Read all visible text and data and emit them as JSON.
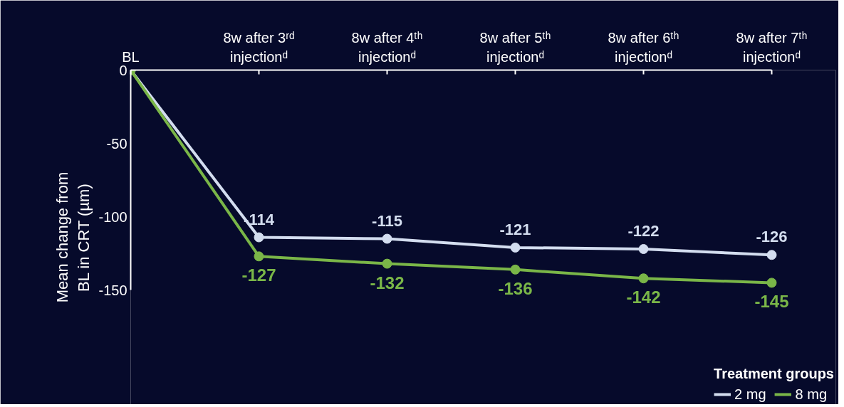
{
  "chart_data": {
    "type": "line",
    "ylabel": "Mean change from\nBL in CRT (µm)",
    "categories": [
      "BL",
      "8w after 3ʳᵈ\ninjectionᵈ",
      "8w after 4ᵗʰ\ninjectionᵈ",
      "8w after 5ᵗʰ\ninjectionᵈ",
      "8w after 6ᵗʰ\ninjectionᵈ",
      "8w after 7ᵗʰ\ninjectionᵈ"
    ],
    "series": [
      {
        "name": "2 mg",
        "color": "#d3ddef",
        "values": [
          0,
          -114,
          -115,
          -121,
          -122,
          -126
        ],
        "value_labels": [
          null,
          "-114",
          "-115",
          "-121",
          "-122",
          "-126"
        ]
      },
      {
        "name": "8 mg",
        "color": "#7ab648",
        "values": [
          0,
          -127,
          -132,
          -136,
          -142,
          -145
        ],
        "value_labels": [
          null,
          "-127",
          "-132",
          "-136",
          "-142",
          "-145"
        ]
      }
    ],
    "ylim": [
      -150,
      0
    ],
    "yticks": [
      0,
      -50,
      -100,
      -150
    ],
    "legend_title": "Treatment groups",
    "legend": "bottom right",
    "marker": "circle",
    "grid": false
  }
}
